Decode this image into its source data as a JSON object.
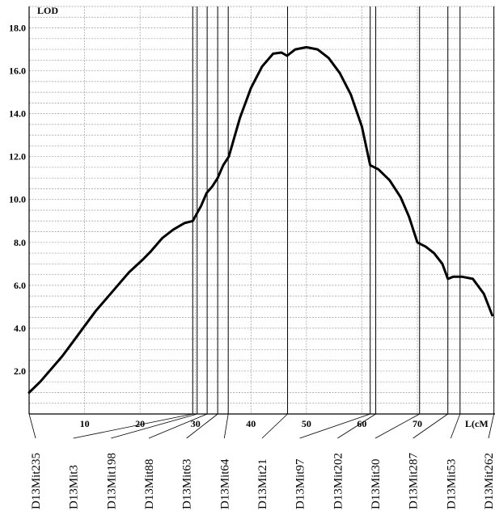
{
  "chart_data": {
    "type": "line",
    "title": "",
    "ylabel": "LOD",
    "xlabel": "L(cM",
    "xlim": [
      0,
      84
    ],
    "ylim": [
      0,
      19
    ],
    "xticks": [
      10,
      20,
      30,
      40,
      50,
      60,
      70
    ],
    "yticks": [
      2.0,
      4.0,
      6.0,
      8.0,
      10.0,
      12.0,
      14.0,
      16.0,
      18.0
    ],
    "ytick_labels": [
      "2.0",
      "4.0",
      "6.0",
      "8.0",
      "10.0",
      "12.0",
      "14.0",
      "16.0",
      "18.0"
    ],
    "grid": true,
    "series": [
      {
        "x": [
          0,
          2,
          4,
          6,
          8,
          10,
          12,
          14,
          16,
          18,
          20.5,
          22,
          24,
          26,
          28,
          29.5,
          31,
          32,
          33,
          34,
          35,
          36,
          38,
          40,
          42,
          44,
          45.5,
          46.5,
          48,
          50,
          52,
          54,
          56,
          58,
          60,
          61.5,
          63,
          65,
          67,
          68.5,
          70,
          71.5,
          73,
          74.5,
          75.5,
          76.5,
          78,
          80,
          82,
          83.5
        ],
        "y": [
          1.0,
          1.5,
          2.1,
          2.7,
          3.4,
          4.1,
          4.8,
          5.4,
          6.0,
          6.6,
          7.2,
          7.6,
          8.2,
          8.6,
          8.9,
          9.0,
          9.7,
          10.3,
          10.6,
          11.0,
          11.6,
          12.0,
          13.8,
          15.2,
          16.2,
          16.8,
          16.85,
          16.7,
          17.0,
          17.1,
          17.0,
          16.6,
          15.9,
          14.9,
          13.4,
          11.6,
          11.4,
          10.9,
          10.1,
          9.2,
          8.0,
          7.8,
          7.5,
          7.0,
          6.3,
          6.4,
          6.4,
          6.3,
          5.6,
          4.6
        ]
      }
    ],
    "markers": [
      {
        "name": "D13Mit235",
        "pos": 0
      },
      {
        "name": "D13Mit3",
        "pos": 29.5
      },
      {
        "name": "D13Mit198",
        "pos": 30.3
      },
      {
        "name": "D13Mit88",
        "pos": 32.1
      },
      {
        "name": "D13Mit63",
        "pos": 34.0
      },
      {
        "name": "D13Mit64",
        "pos": 35.9
      },
      {
        "name": "D13Mit21",
        "pos": 46.6
      },
      {
        "name": "D13Mit97",
        "pos": 61.5
      },
      {
        "name": "D13Mit202",
        "pos": 62.5
      },
      {
        "name": "D13Mit30",
        "pos": 70.4
      },
      {
        "name": "D13Mit287",
        "pos": 75.5
      },
      {
        "name": "D13Mit53",
        "pos": 77.7
      },
      {
        "name": "D13Mit262",
        "pos": 83.8
      }
    ]
  }
}
